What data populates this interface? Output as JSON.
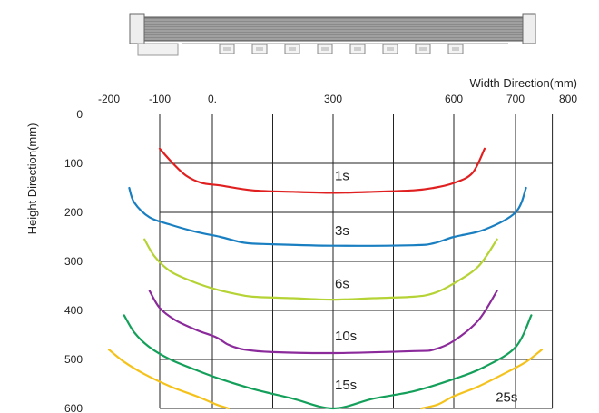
{
  "chart_data": {
    "type": "line",
    "xlabel": "Width Direction(mm)",
    "ylabel": "Height Direction(mm)",
    "x_ticks": [
      "-200",
      "-100",
      "0.",
      "300",
      "600",
      "700",
      "800"
    ],
    "y_ticks": [
      "0",
      "100",
      "200",
      "300",
      "400",
      "500",
      "600"
    ],
    "xlim": [
      -200,
      800
    ],
    "ylim": [
      0,
      600
    ],
    "y_inverted": true,
    "grid": true,
    "series": [
      {
        "name": "1s",
        "color": "#e02020",
        "x": [
          -100,
          -75,
          -50,
          -20,
          20,
          100,
          200,
          300,
          400,
          500,
          550,
          600,
          630,
          650
        ],
        "y": [
          70,
          100,
          125,
          140,
          145,
          155,
          158,
          160,
          158,
          155,
          150,
          140,
          120,
          70
        ]
      },
      {
        "name": "3s",
        "color": "#1a7fc1",
        "x": [
          -160,
          -150,
          -120,
          -80,
          -30,
          20,
          80,
          150,
          300,
          500,
          550,
          600,
          650,
          700,
          720
        ],
        "y": [
          150,
          180,
          210,
          225,
          240,
          250,
          262,
          265,
          268,
          267,
          263,
          250,
          235,
          200,
          150
        ]
      },
      {
        "name": "6s",
        "color": "#b5d335",
        "x": [
          -130,
          -110,
          -80,
          -40,
          0,
          50,
          100,
          200,
          300,
          400,
          500,
          550,
          600,
          640,
          670
        ],
        "y": [
          255,
          290,
          320,
          340,
          355,
          365,
          372,
          375,
          378,
          375,
          372,
          365,
          345,
          310,
          255
        ]
      },
      {
        "name": "10s",
        "color": "#8b2a9b",
        "x": [
          -120,
          -100,
          -70,
          -30,
          10,
          40,
          80,
          150,
          300,
          500,
          550,
          600,
          640,
          670
        ],
        "y": [
          360,
          395,
          420,
          440,
          455,
          470,
          480,
          485,
          487,
          483,
          480,
          462,
          420,
          360
        ]
      },
      {
        "name": "15s",
        "color": "#14a05a",
        "x": [
          -170,
          -150,
          -120,
          -80,
          -30,
          20,
          100,
          200,
          300,
          400,
          500,
          600,
          650,
          700,
          730
        ],
        "y": [
          410,
          445,
          475,
          500,
          522,
          540,
          560,
          580,
          600,
          580,
          565,
          540,
          515,
          475,
          410
        ]
      },
      {
        "name": "25s",
        "color": "#f5c21b",
        "x": [
          -200,
          -170,
          -130,
          -80,
          -30,
          10,
          40
        ],
        "y": [
          480,
          505,
          530,
          555,
          575,
          592,
          600
        ]
      },
      {
        "name": "25s",
        "color": "#f5c21b",
        "x": [
          520,
          560,
          600,
          640,
          680,
          720,
          750
        ],
        "y": [
          600,
          592,
          575,
          555,
          530,
          505,
          480
        ]
      }
    ],
    "curve_labels": [
      {
        "text": "1s",
        "x": 300,
        "y": 125
      },
      {
        "text": "3s",
        "x": 300,
        "y": 237
      },
      {
        "text": "6s",
        "x": 300,
        "y": 345
      },
      {
        "text": "10s",
        "x": 300,
        "y": 452
      },
      {
        "text": "15s",
        "x": 300,
        "y": 552
      },
      {
        "text": "25s",
        "x": 665,
        "y": 577
      }
    ]
  },
  "colors": {
    "grid": "#222222",
    "background": "#ffffff"
  }
}
